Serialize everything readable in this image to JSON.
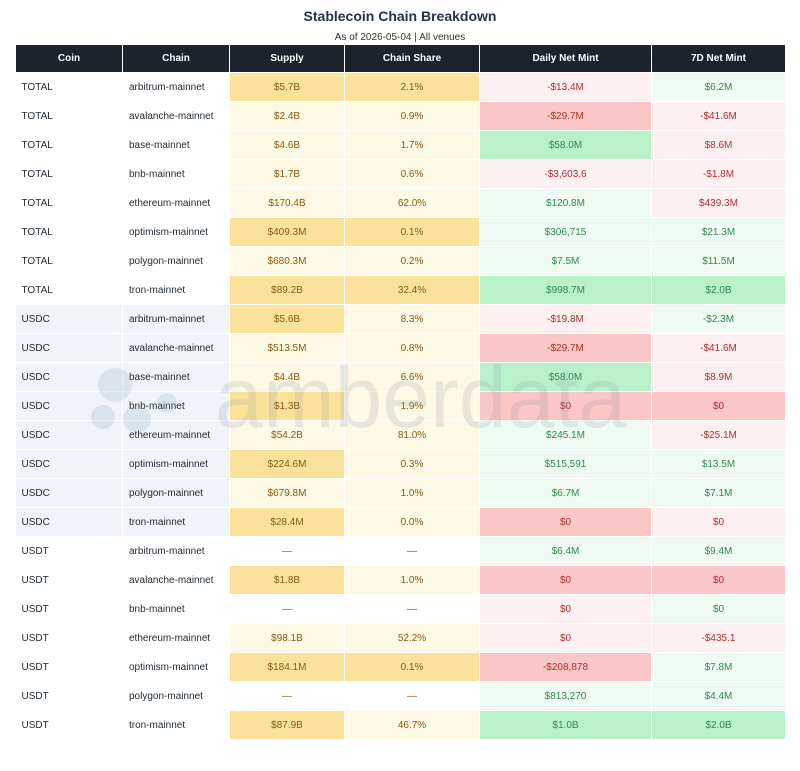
{
  "title": "Stablecoin Chain Breakdown",
  "subtitle": "As of 2026-05-04 | All venues",
  "watermark_text": "amberdata",
  "columns": [
    "Coin",
    "Chain",
    "Supply",
    "Chain Share",
    "Daily Net Mint",
    "7D Net Mint"
  ],
  "colors": {
    "header_bg": "#1c232d",
    "supply_strong": "#fbe29a",
    "supply_light": "#fef9e4",
    "pos_strong": "#b9f2c9",
    "pos_light": "#effbf2",
    "neg_strong": "#fbc6c6",
    "neg_light": "#fdf0f0"
  },
  "chart_data": {
    "type": "table",
    "title": "Stablecoin Chain Breakdown",
    "rows": [
      {
        "coin": "TOTAL",
        "chain": "arbitrum-mainnet",
        "supply": "$5.7B",
        "share": "2.1%",
        "daily": "-$13.4M",
        "weekly": "$6.2M",
        "supply_shade": "strong",
        "share_shade": "strong",
        "daily_shade": "neg_light",
        "weekly_shade": "pos_light"
      },
      {
        "coin": "TOTAL",
        "chain": "avalanche-mainnet",
        "supply": "$2.4B",
        "share": "0.9%",
        "daily": "-$29.7M",
        "weekly": "-$41.6M",
        "supply_shade": "light",
        "share_shade": "light",
        "daily_shade": "neg_strong",
        "weekly_shade": "neg_light"
      },
      {
        "coin": "TOTAL",
        "chain": "base-mainnet",
        "supply": "$4.6B",
        "share": "1.7%",
        "daily": "$58.0M",
        "weekly": "$8.6M",
        "supply_shade": "light",
        "share_shade": "light",
        "daily_shade": "pos_strong",
        "weekly_shade": "neg_light"
      },
      {
        "coin": "TOTAL",
        "chain": "bnb-mainnet",
        "supply": "$1.7B",
        "share": "0.6%",
        "daily": "-$3,603.6",
        "weekly": "-$1.8M",
        "supply_shade": "light",
        "share_shade": "light",
        "daily_shade": "neg_light",
        "weekly_shade": "neg_light"
      },
      {
        "coin": "TOTAL",
        "chain": "ethereum-mainnet",
        "supply": "$170.4B",
        "share": "62.0%",
        "daily": "$120.8M",
        "weekly": "$439.3M",
        "supply_shade": "light",
        "share_shade": "light",
        "daily_shade": "pos_light",
        "weekly_shade": "neg_light"
      },
      {
        "coin": "TOTAL",
        "chain": "optimism-mainnet",
        "supply": "$409.3M",
        "share": "0.1%",
        "daily": "$306,715",
        "weekly": "$21.3M",
        "supply_shade": "strong",
        "share_shade": "strong",
        "daily_shade": "pos_light",
        "weekly_shade": "pos_light"
      },
      {
        "coin": "TOTAL",
        "chain": "polygon-mainnet",
        "supply": "$680.3M",
        "share": "0.2%",
        "daily": "$7.5M",
        "weekly": "$11.5M",
        "supply_shade": "light",
        "share_shade": "light",
        "daily_shade": "pos_light",
        "weekly_shade": "pos_light"
      },
      {
        "coin": "TOTAL",
        "chain": "tron-mainnet",
        "supply": "$89.2B",
        "share": "32.4%",
        "daily": "$998.7M",
        "weekly": "$2.0B",
        "supply_shade": "strong",
        "share_shade": "strong",
        "daily_shade": "pos_strong",
        "weekly_shade": "pos_strong"
      },
      {
        "coin": "USDC",
        "chain": "arbitrum-mainnet",
        "supply": "$5.6B",
        "share": "8.3%",
        "daily": "-$19.8M",
        "weekly": "-$2.3M",
        "supply_shade": "strong",
        "share_shade": "light",
        "daily_shade": "neg_light",
        "weekly_shade": "pos_light"
      },
      {
        "coin": "USDC",
        "chain": "avalanche-mainnet",
        "supply": "$513.5M",
        "share": "0.8%",
        "daily": "-$29.7M",
        "weekly": "-$41.6M",
        "supply_shade": "light",
        "share_shade": "light",
        "daily_shade": "neg_strong",
        "weekly_shade": "neg_light"
      },
      {
        "coin": "USDC",
        "chain": "base-mainnet",
        "supply": "$4.4B",
        "share": "6.6%",
        "daily": "$58.0M",
        "weekly": "$8.9M",
        "supply_shade": "light",
        "share_shade": "light",
        "daily_shade": "pos_strong",
        "weekly_shade": "neg_light"
      },
      {
        "coin": "USDC",
        "chain": "bnb-mainnet",
        "supply": "$1.3B",
        "share": "1.9%",
        "daily": "$0",
        "weekly": "$0",
        "supply_shade": "strong",
        "share_shade": "light",
        "daily_shade": "neg_strong",
        "weekly_shade": "neg_strong"
      },
      {
        "coin": "USDC",
        "chain": "ethereum-mainnet",
        "supply": "$54.2B",
        "share": "81.0%",
        "daily": "$245.1M",
        "weekly": "-$25.1M",
        "supply_shade": "light",
        "share_shade": "light",
        "daily_shade": "pos_light",
        "weekly_shade": "neg_light"
      },
      {
        "coin": "USDC",
        "chain": "optimism-mainnet",
        "supply": "$224.6M",
        "share": "0.3%",
        "daily": "$515,591",
        "weekly": "$13.5M",
        "supply_shade": "strong",
        "share_shade": "light",
        "daily_shade": "pos_light",
        "weekly_shade": "pos_light"
      },
      {
        "coin": "USDC",
        "chain": "polygon-mainnet",
        "supply": "$679.8M",
        "share": "1.0%",
        "daily": "$6.7M",
        "weekly": "$7.1M",
        "supply_shade": "light",
        "share_shade": "light",
        "daily_shade": "pos_light",
        "weekly_shade": "pos_light"
      },
      {
        "coin": "USDC",
        "chain": "tron-mainnet",
        "supply": "$28.4M",
        "share": "0.0%",
        "daily": "$0",
        "weekly": "$0",
        "supply_shade": "strong",
        "share_shade": "light",
        "daily_shade": "neg_strong",
        "weekly_shade": "neg_light"
      },
      {
        "coin": "USDT",
        "chain": "arbitrum-mainnet",
        "supply": "—",
        "share": "—",
        "daily": "$6.4M",
        "weekly": "$9.4M",
        "supply_shade": "none",
        "share_shade": "none",
        "daily_shade": "pos_light",
        "weekly_shade": "pos_light"
      },
      {
        "coin": "USDT",
        "chain": "avalanche-mainnet",
        "supply": "$1.8B",
        "share": "1.0%",
        "daily": "$0",
        "weekly": "$0",
        "supply_shade": "strong",
        "share_shade": "light",
        "daily_shade": "neg_strong",
        "weekly_shade": "neg_strong"
      },
      {
        "coin": "USDT",
        "chain": "bnb-mainnet",
        "supply": "—",
        "share": "—",
        "daily": "$0",
        "weekly": "$0",
        "supply_shade": "none",
        "share_shade": "none",
        "daily_shade": "neg_light",
        "weekly_shade": "pos_light"
      },
      {
        "coin": "USDT",
        "chain": "ethereum-mainnet",
        "supply": "$98.1B",
        "share": "52.2%",
        "daily": "$0",
        "weekly": "-$435.1",
        "supply_shade": "light",
        "share_shade": "light",
        "daily_shade": "neg_light",
        "weekly_shade": "neg_light"
      },
      {
        "coin": "USDT",
        "chain": "optimism-mainnet",
        "supply": "$184.1M",
        "share": "0.1%",
        "daily": "-$208,878",
        "weekly": "$7.8M",
        "supply_shade": "strong",
        "share_shade": "strong",
        "daily_shade": "neg_strong",
        "weekly_shade": "pos_light"
      },
      {
        "coin": "USDT",
        "chain": "polygon-mainnet",
        "supply": "—",
        "share": "—",
        "daily": "$813,270",
        "weekly": "$4.4M",
        "supply_shade": "none",
        "share_shade": "none",
        "daily_shade": "pos_light",
        "weekly_shade": "pos_light"
      },
      {
        "coin": "USDT",
        "chain": "tron-mainnet",
        "supply": "$87.9B",
        "share": "46.7%",
        "daily": "$1.0B",
        "weekly": "$2.0B",
        "supply_shade": "strong",
        "share_shade": "light",
        "daily_shade": "pos_strong",
        "weekly_shade": "pos_strong"
      }
    ]
  }
}
